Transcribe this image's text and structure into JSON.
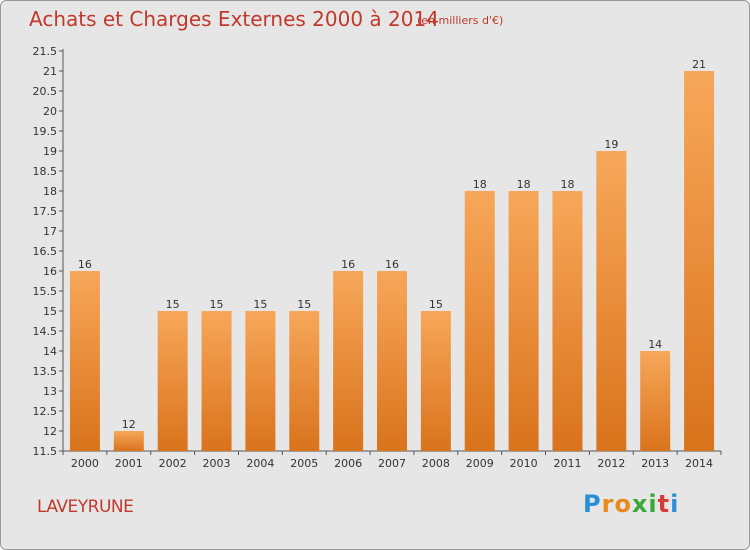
{
  "header": {
    "title": "Achats et Charges Externes 2000 à 2014",
    "unit": "(en milliers d'€)"
  },
  "footer": {
    "place": "LAVEYRUNE",
    "logo": {
      "letters": [
        "P",
        "r",
        "o",
        "x",
        "i",
        "t",
        "i"
      ],
      "colors": [
        "#2a8fd6",
        "#e8891e",
        "#e8891e",
        "#3aa83a",
        "#3aa83a",
        "#d63b3b",
        "#2a8fd6"
      ]
    }
  },
  "colors": {
    "bar_light": "#f7a75a",
    "bar_dark": "#d9731c",
    "title": "#c0392b"
  },
  "chart_data": {
    "type": "bar",
    "title": "Achats et Charges Externes 2000 à 2014",
    "xlabel": "",
    "ylabel": "",
    "categories": [
      "2000",
      "2001",
      "2002",
      "2003",
      "2004",
      "2005",
      "2006",
      "2007",
      "2008",
      "2009",
      "2010",
      "2011",
      "2012",
      "2013",
      "2014"
    ],
    "values": [
      16,
      12,
      15,
      15,
      15,
      15,
      16,
      16,
      15,
      18,
      18,
      18,
      19,
      14,
      21
    ],
    "ylim": [
      11.5,
      21.5
    ],
    "yticks": [
      "11.5",
      "12",
      "12.5",
      "13",
      "13.5",
      "14",
      "14.5",
      "15",
      "15.5",
      "16",
      "16.5",
      "17",
      "17.5",
      "18",
      "18.5",
      "19",
      "19.5",
      "20",
      "20.5",
      "21",
      "21.5"
    ],
    "grid": false,
    "legend": "none"
  }
}
